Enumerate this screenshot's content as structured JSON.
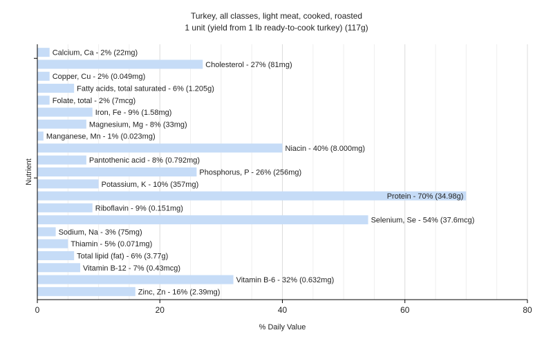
{
  "chart_data": {
    "type": "bar",
    "orientation": "horizontal",
    "title": "Turkey, all classes, light meat, cooked, roasted",
    "subtitle": "1 unit (yield from 1 lb ready-to-cook turkey) (117g)",
    "xlabel": "% Daily Value",
    "ylabel": "Nutrient",
    "xlim": [
      0,
      80
    ],
    "xticks": [
      0,
      20,
      40,
      60,
      80
    ],
    "grid": true,
    "bar_color": "#c6dcf7",
    "categories": [
      "Calcium, Ca",
      "Cholesterol",
      "Copper, Cu",
      "Fatty acids, total saturated",
      "Folate, total",
      "Iron, Fe",
      "Magnesium, Mg",
      "Manganese, Mn",
      "Niacin",
      "Pantothenic acid",
      "Phosphorus, P",
      "Potassium, K",
      "Protein",
      "Riboflavin",
      "Selenium, Se",
      "Sodium, Na",
      "Thiamin",
      "Total lipid (fat)",
      "Vitamin B-12",
      "Vitamin B-6",
      "Zinc, Zn"
    ],
    "values": [
      2,
      27,
      2,
      6,
      2,
      9,
      8,
      1,
      40,
      8,
      26,
      10,
      70,
      9,
      54,
      3,
      5,
      6,
      7,
      32,
      16
    ],
    "labels": [
      "Calcium, Ca - 2% (22mg)",
      "Cholesterol - 27% (81mg)",
      "Copper, Cu - 2% (0.049mg)",
      "Fatty acids, total saturated - 6% (1.205g)",
      "Folate, total - 2% (7mcg)",
      "Iron, Fe - 9% (1.58mg)",
      "Magnesium, Mg - 8% (33mg)",
      "Manganese, Mn - 1% (0.023mg)",
      "Niacin - 40% (8.000mg)",
      "Pantothenic acid - 8% (0.792mg)",
      "Phosphorus, P - 26% (256mg)",
      "Potassium, K - 10% (357mg)",
      "Protein - 70% (34.98g)",
      "Riboflavin - 9% (0.151mg)",
      "Selenium, Se - 54% (37.6mcg)",
      "Sodium, Na - 3% (75mg)",
      "Thiamin - 5% (0.071mg)",
      "Total lipid (fat) - 6% (3.77g)",
      "Vitamin B-12 - 7% (0.43mcg)",
      "Vitamin B-6 - 32% (0.632mg)",
      "Zinc, Zn - 16% (2.39mg)"
    ]
  }
}
